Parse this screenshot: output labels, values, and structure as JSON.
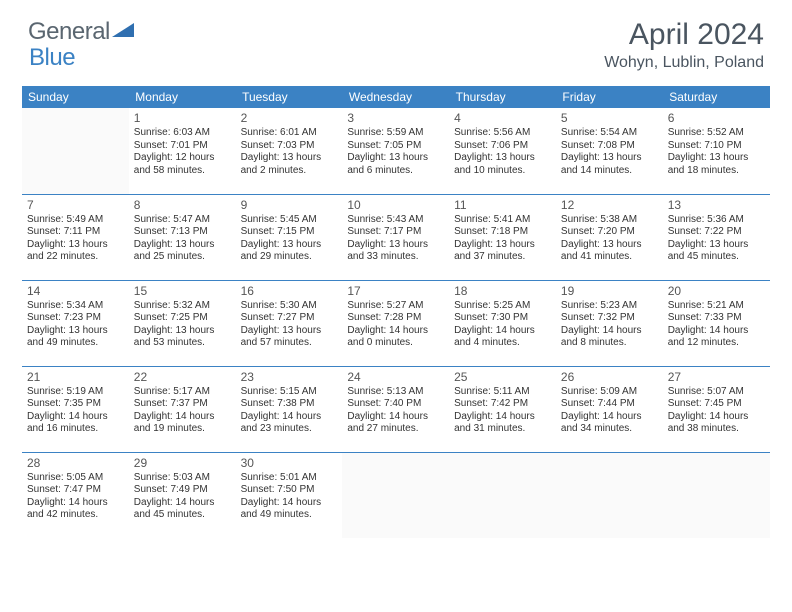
{
  "logo": {
    "general": "General",
    "blue": "Blue"
  },
  "title": "April 2024",
  "location": "Wohyn, Lublin, Poland",
  "colors": {
    "header_bg": "#3b82c4",
    "header_text": "#ffffff",
    "text": "#333333",
    "logo_gray": "#5a6670",
    "logo_blue": "#3b82c4",
    "border": "#3b82c4"
  },
  "weekdays": [
    "Sunday",
    "Monday",
    "Tuesday",
    "Wednesday",
    "Thursday",
    "Friday",
    "Saturday"
  ],
  "weeks": [
    [
      null,
      {
        "n": "1",
        "sr": "Sunrise: 6:03 AM",
        "ss": "Sunset: 7:01 PM",
        "dl": "Daylight: 12 hours and 58 minutes."
      },
      {
        "n": "2",
        "sr": "Sunrise: 6:01 AM",
        "ss": "Sunset: 7:03 PM",
        "dl": "Daylight: 13 hours and 2 minutes."
      },
      {
        "n": "3",
        "sr": "Sunrise: 5:59 AM",
        "ss": "Sunset: 7:05 PM",
        "dl": "Daylight: 13 hours and 6 minutes."
      },
      {
        "n": "4",
        "sr": "Sunrise: 5:56 AM",
        "ss": "Sunset: 7:06 PM",
        "dl": "Daylight: 13 hours and 10 minutes."
      },
      {
        "n": "5",
        "sr": "Sunrise: 5:54 AM",
        "ss": "Sunset: 7:08 PM",
        "dl": "Daylight: 13 hours and 14 minutes."
      },
      {
        "n": "6",
        "sr": "Sunrise: 5:52 AM",
        "ss": "Sunset: 7:10 PM",
        "dl": "Daylight: 13 hours and 18 minutes."
      }
    ],
    [
      {
        "n": "7",
        "sr": "Sunrise: 5:49 AM",
        "ss": "Sunset: 7:11 PM",
        "dl": "Daylight: 13 hours and 22 minutes."
      },
      {
        "n": "8",
        "sr": "Sunrise: 5:47 AM",
        "ss": "Sunset: 7:13 PM",
        "dl": "Daylight: 13 hours and 25 minutes."
      },
      {
        "n": "9",
        "sr": "Sunrise: 5:45 AM",
        "ss": "Sunset: 7:15 PM",
        "dl": "Daylight: 13 hours and 29 minutes."
      },
      {
        "n": "10",
        "sr": "Sunrise: 5:43 AM",
        "ss": "Sunset: 7:17 PM",
        "dl": "Daylight: 13 hours and 33 minutes."
      },
      {
        "n": "11",
        "sr": "Sunrise: 5:41 AM",
        "ss": "Sunset: 7:18 PM",
        "dl": "Daylight: 13 hours and 37 minutes."
      },
      {
        "n": "12",
        "sr": "Sunrise: 5:38 AM",
        "ss": "Sunset: 7:20 PM",
        "dl": "Daylight: 13 hours and 41 minutes."
      },
      {
        "n": "13",
        "sr": "Sunrise: 5:36 AM",
        "ss": "Sunset: 7:22 PM",
        "dl": "Daylight: 13 hours and 45 minutes."
      }
    ],
    [
      {
        "n": "14",
        "sr": "Sunrise: 5:34 AM",
        "ss": "Sunset: 7:23 PM",
        "dl": "Daylight: 13 hours and 49 minutes."
      },
      {
        "n": "15",
        "sr": "Sunrise: 5:32 AM",
        "ss": "Sunset: 7:25 PM",
        "dl": "Daylight: 13 hours and 53 minutes."
      },
      {
        "n": "16",
        "sr": "Sunrise: 5:30 AM",
        "ss": "Sunset: 7:27 PM",
        "dl": "Daylight: 13 hours and 57 minutes."
      },
      {
        "n": "17",
        "sr": "Sunrise: 5:27 AM",
        "ss": "Sunset: 7:28 PM",
        "dl": "Daylight: 14 hours and 0 minutes."
      },
      {
        "n": "18",
        "sr": "Sunrise: 5:25 AM",
        "ss": "Sunset: 7:30 PM",
        "dl": "Daylight: 14 hours and 4 minutes."
      },
      {
        "n": "19",
        "sr": "Sunrise: 5:23 AM",
        "ss": "Sunset: 7:32 PM",
        "dl": "Daylight: 14 hours and 8 minutes."
      },
      {
        "n": "20",
        "sr": "Sunrise: 5:21 AM",
        "ss": "Sunset: 7:33 PM",
        "dl": "Daylight: 14 hours and 12 minutes."
      }
    ],
    [
      {
        "n": "21",
        "sr": "Sunrise: 5:19 AM",
        "ss": "Sunset: 7:35 PM",
        "dl": "Daylight: 14 hours and 16 minutes."
      },
      {
        "n": "22",
        "sr": "Sunrise: 5:17 AM",
        "ss": "Sunset: 7:37 PM",
        "dl": "Daylight: 14 hours and 19 minutes."
      },
      {
        "n": "23",
        "sr": "Sunrise: 5:15 AM",
        "ss": "Sunset: 7:38 PM",
        "dl": "Daylight: 14 hours and 23 minutes."
      },
      {
        "n": "24",
        "sr": "Sunrise: 5:13 AM",
        "ss": "Sunset: 7:40 PM",
        "dl": "Daylight: 14 hours and 27 minutes."
      },
      {
        "n": "25",
        "sr": "Sunrise: 5:11 AM",
        "ss": "Sunset: 7:42 PM",
        "dl": "Daylight: 14 hours and 31 minutes."
      },
      {
        "n": "26",
        "sr": "Sunrise: 5:09 AM",
        "ss": "Sunset: 7:44 PM",
        "dl": "Daylight: 14 hours and 34 minutes."
      },
      {
        "n": "27",
        "sr": "Sunrise: 5:07 AM",
        "ss": "Sunset: 7:45 PM",
        "dl": "Daylight: 14 hours and 38 minutes."
      }
    ],
    [
      {
        "n": "28",
        "sr": "Sunrise: 5:05 AM",
        "ss": "Sunset: 7:47 PM",
        "dl": "Daylight: 14 hours and 42 minutes."
      },
      {
        "n": "29",
        "sr": "Sunrise: 5:03 AM",
        "ss": "Sunset: 7:49 PM",
        "dl": "Daylight: 14 hours and 45 minutes."
      },
      {
        "n": "30",
        "sr": "Sunrise: 5:01 AM",
        "ss": "Sunset: 7:50 PM",
        "dl": "Daylight: 14 hours and 49 minutes."
      },
      null,
      null,
      null,
      null
    ]
  ]
}
